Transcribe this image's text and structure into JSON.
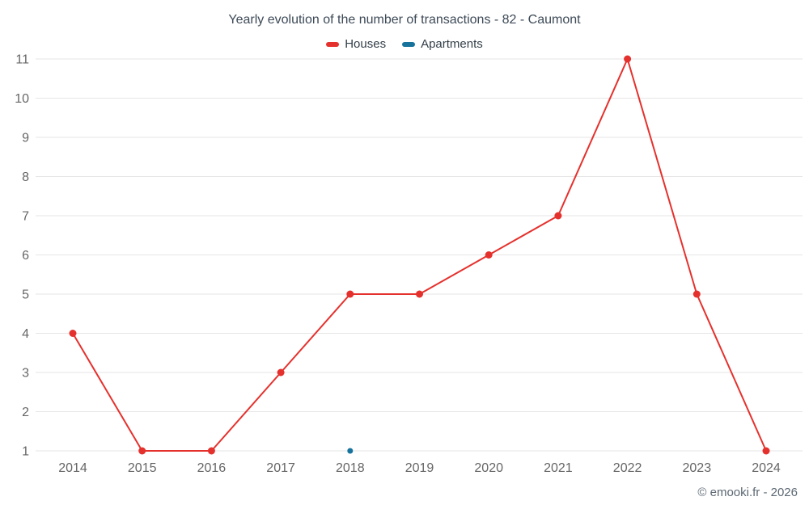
{
  "chart_data": {
    "type": "line",
    "title": "Yearly evolution of the number of transactions - 82 - Caumont",
    "categories": [
      2014,
      2015,
      2016,
      2017,
      2018,
      2019,
      2020,
      2021,
      2022,
      2023,
      2024
    ],
    "series": [
      {
        "name": "Houses",
        "color": "#e5312d",
        "x": [
          2014,
          2015,
          2016,
          2017,
          2018,
          2019,
          2020,
          2021,
          2022,
          2023,
          2024
        ],
        "values": [
          4,
          1,
          1,
          3,
          5,
          5,
          6,
          7,
          11,
          5,
          1
        ]
      },
      {
        "name": "Apartments",
        "color": "#17739c",
        "x": [
          2018
        ],
        "values": [
          1
        ]
      }
    ],
    "ylim": [
      1,
      11
    ],
    "yticks": [
      1,
      2,
      3,
      4,
      5,
      6,
      7,
      8,
      9,
      10,
      11
    ],
    "xlabel": "",
    "ylabel": "",
    "grid": "horizontal",
    "legend_position": "top",
    "footer": "© emooki.fr - 2026",
    "colors": {
      "grid": "#e6e6e6",
      "axis_label": "#666666",
      "title_text": "#3d4a57",
      "legend_text": "#333f48",
      "footer_text": "#5c6873",
      "background": "#ffffff"
    }
  }
}
